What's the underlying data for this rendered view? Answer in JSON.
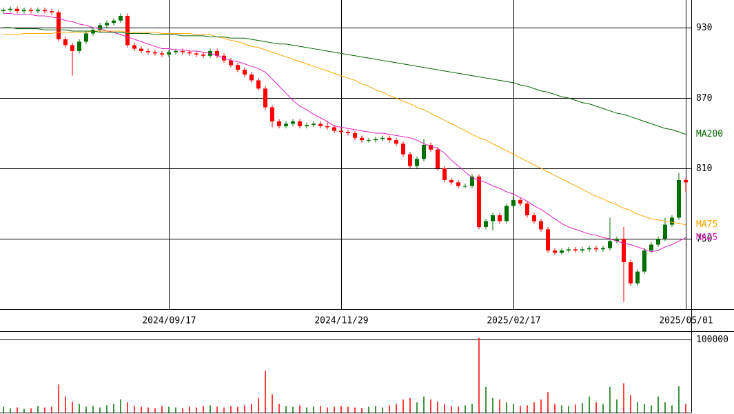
{
  "chart_data": {
    "type": "candlestick",
    "categories": [
      null,
      null,
      null,
      null,
      null,
      null,
      null,
      null,
      null,
      null,
      null,
      null,
      null,
      null,
      null,
      null,
      null,
      null,
      null,
      null,
      null,
      null,
      null,
      null,
      "2024/09/17",
      null,
      null,
      null,
      null,
      null,
      null,
      null,
      null,
      null,
      null,
      null,
      null,
      null,
      null,
      null,
      null,
      null,
      null,
      null,
      null,
      null,
      null,
      null,
      null,
      "2024/11/29",
      null,
      null,
      null,
      null,
      null,
      null,
      null,
      null,
      null,
      null,
      null,
      null,
      null,
      null,
      null,
      null,
      null,
      null,
      null,
      null,
      null,
      null,
      null,
      null,
      "2025/02/17",
      null,
      null,
      null,
      null,
      null,
      null,
      null,
      null,
      null,
      null,
      null,
      null,
      null,
      null,
      null,
      null,
      null,
      null,
      null,
      null,
      null,
      null,
      null,
      null,
      "2025/05/01"
    ],
    "ohlc": [
      [
        944,
        947,
        942,
        945
      ],
      [
        945,
        948,
        943,
        946
      ],
      [
        946,
        948,
        942,
        944
      ],
      [
        944,
        947,
        942,
        945
      ],
      [
        945,
        947,
        942,
        944
      ],
      [
        944,
        947,
        942,
        945
      ],
      [
        945,
        947,
        942,
        944
      ],
      [
        944,
        946,
        941,
        943
      ],
      [
        943,
        945,
        918,
        920
      ],
      [
        920,
        922,
        913,
        915
      ],
      [
        915,
        917,
        889,
        910
      ],
      [
        910,
        920,
        908,
        918
      ],
      [
        918,
        927,
        916,
        925
      ],
      [
        925,
        930,
        923,
        928
      ],
      [
        928,
        934,
        926,
        932
      ],
      [
        932,
        936,
        930,
        934
      ],
      [
        934,
        938,
        932,
        936
      ],
      [
        936,
        942,
        934,
        940
      ],
      [
        940,
        942,
        913,
        915
      ],
      [
        915,
        917,
        910,
        912
      ],
      [
        912,
        914,
        908,
        910
      ],
      [
        910,
        912,
        907,
        909
      ],
      [
        909,
        911,
        906,
        908
      ],
      [
        908,
        910,
        905,
        907
      ],
      [
        907,
        911,
        905,
        909
      ],
      [
        909,
        912,
        907,
        910
      ],
      [
        910,
        912,
        907,
        909
      ],
      [
        909,
        911,
        906,
        908
      ],
      [
        908,
        910,
        905,
        907
      ],
      [
        907,
        909,
        904,
        906
      ],
      [
        906,
        912,
        904,
        910
      ],
      [
        910,
        912,
        904,
        906
      ],
      [
        906,
        908,
        900,
        902
      ],
      [
        902,
        904,
        896,
        898
      ],
      [
        898,
        900,
        892,
        894
      ],
      [
        894,
        896,
        888,
        890
      ],
      [
        890,
        892,
        883,
        885
      ],
      [
        885,
        887,
        876,
        878
      ],
      [
        878,
        880,
        860,
        862
      ],
      [
        862,
        864,
        845,
        850
      ],
      [
        850,
        852,
        844,
        846
      ],
      [
        846,
        850,
        844,
        848
      ],
      [
        848,
        852,
        846,
        850
      ],
      [
        850,
        852,
        844,
        846
      ],
      [
        846,
        849,
        844,
        847
      ],
      [
        847,
        850,
        845,
        848
      ],
      [
        848,
        850,
        844,
        846
      ],
      [
        846,
        850,
        843,
        845
      ],
      [
        845,
        847,
        840,
        842
      ],
      [
        842,
        844,
        839,
        841
      ],
      [
        841,
        843,
        838,
        840
      ],
      [
        840,
        842,
        834,
        836
      ],
      [
        836,
        838,
        832,
        834
      ],
      [
        834,
        836,
        832,
        834
      ],
      [
        834,
        837,
        832,
        835
      ],
      [
        835,
        838,
        833,
        836
      ],
      [
        836,
        838,
        832,
        834
      ],
      [
        834,
        836,
        829,
        831
      ],
      [
        831,
        833,
        820,
        822
      ],
      [
        822,
        824,
        810,
        812
      ],
      [
        812,
        820,
        810,
        818
      ],
      [
        818,
        835,
        816,
        830
      ],
      [
        830,
        832,
        824,
        826
      ],
      [
        826,
        828,
        808,
        810
      ],
      [
        810,
        812,
        798,
        800
      ],
      [
        800,
        802,
        796,
        798
      ],
      [
        798,
        800,
        793,
        795
      ],
      [
        795,
        797,
        793,
        795
      ],
      [
        795,
        805,
        793,
        803
      ],
      [
        803,
        805,
        758,
        760
      ],
      [
        760,
        767,
        758,
        765
      ],
      [
        765,
        772,
        757,
        770
      ],
      [
        770,
        772,
        763,
        765
      ],
      [
        765,
        780,
        763,
        778
      ],
      [
        778,
        786,
        776,
        783
      ],
      [
        783,
        785,
        778,
        780
      ],
      [
        780,
        782,
        768,
        770
      ],
      [
        770,
        772,
        763,
        765
      ],
      [
        765,
        767,
        756,
        758
      ],
      [
        758,
        760,
        738,
        740
      ],
      [
        740,
        742,
        736,
        738
      ],
      [
        738,
        742,
        736,
        740
      ],
      [
        740,
        743,
        738,
        741
      ],
      [
        741,
        743,
        738,
        740
      ],
      [
        740,
        743,
        738,
        741
      ],
      [
        741,
        744,
        739,
        742
      ],
      [
        742,
        744,
        739,
        741
      ],
      [
        741,
        744,
        739,
        742
      ],
      [
        742,
        768,
        740,
        748
      ],
      [
        748,
        752,
        746,
        750
      ],
      [
        750,
        760,
        696,
        730
      ],
      [
        730,
        732,
        710,
        712
      ],
      [
        712,
        724,
        710,
        722
      ],
      [
        722,
        742,
        720,
        740
      ],
      [
        740,
        747,
        738,
        745
      ],
      [
        745,
        752,
        743,
        750
      ],
      [
        750,
        768,
        748,
        762
      ],
      [
        762,
        770,
        760,
        768
      ],
      [
        768,
        806,
        766,
        800
      ],
      [
        800,
        802,
        790,
        798
      ]
    ],
    "up_color": "#007000",
    "down_color": "#ff0000",
    "ylim": [
      690,
      953.5
    ],
    "yticks": [
      750,
      810,
      870,
      930
    ],
    "series": [
      {
        "name": "MA25",
        "color": "#e020c0",
        "values": [
          942,
          942,
          941,
          941,
          941,
          940,
          940,
          939,
          938,
          936,
          935,
          933,
          932,
          930,
          929,
          927,
          926,
          924,
          922,
          920,
          918,
          916,
          914,
          912,
          912,
          911,
          911,
          910,
          910,
          909,
          908,
          906,
          904,
          902,
          901,
          899,
          897,
          895,
          892,
          886,
          880,
          874,
          868,
          863,
          860,
          856,
          853,
          850,
          846,
          845,
          844,
          843,
          842,
          841,
          840,
          840,
          839,
          838,
          837,
          836,
          834,
          831,
          829,
          827,
          823,
          817,
          812,
          807,
          802,
          800,
          798,
          795,
          793,
          790,
          788,
          785,
          782,
          778,
          775,
          771,
          767,
          763,
          760,
          758,
          756,
          754,
          753,
          751,
          750,
          748,
          746,
          745,
          743,
          741,
          739,
          740,
          743,
          745,
          748,
          751
        ]
      },
      {
        "name": "MA75",
        "color": "#ffa500",
        "values": [
          924,
          924,
          924,
          925,
          925,
          925,
          925,
          925,
          926,
          926,
          926,
          926,
          926,
          927,
          927,
          927,
          927,
          927,
          926,
          926,
          926,
          926,
          926,
          925,
          925,
          925,
          925,
          925,
          924,
          924,
          924,
          922,
          921,
          919,
          918,
          916,
          914,
          913,
          911,
          909,
          907,
          905,
          903,
          901,
          899,
          897,
          895,
          893,
          891,
          889,
          887,
          885,
          882,
          880,
          877,
          875,
          872,
          870,
          867,
          865,
          862,
          860,
          857,
          854,
          851,
          848,
          845,
          842,
          839,
          836,
          834,
          831,
          828,
          825,
          822,
          819,
          816,
          813,
          810,
          807,
          804,
          801,
          798,
          795,
          792,
          789,
          786,
          784,
          781,
          779,
          776,
          774,
          771,
          769,
          767,
          766,
          765,
          764,
          763,
          762
        ]
      },
      {
        "name": "MA200",
        "color": "#006400",
        "values": [
          930,
          930,
          929,
          929,
          929,
          929,
          928,
          928,
          928,
          928,
          927,
          927,
          927,
          927,
          926,
          926,
          926,
          926,
          925,
          925,
          925,
          925,
          924,
          924,
          924,
          924,
          923,
          923,
          923,
          923,
          922,
          922,
          922,
          921,
          921,
          921,
          920,
          919,
          918,
          917,
          916,
          916,
          915,
          914,
          913,
          912,
          911,
          910,
          909,
          908,
          907,
          906,
          905,
          904,
          903,
          902,
          901,
          900,
          899,
          898,
          897,
          896,
          895,
          894,
          893,
          892,
          891,
          890,
          889,
          888,
          887,
          886,
          885,
          884,
          883,
          881,
          880,
          878,
          876,
          875,
          873,
          871,
          870,
          868,
          866,
          865,
          863,
          861,
          859,
          857,
          856,
          854,
          852,
          850,
          848,
          846,
          844,
          843,
          841,
          839
        ]
      }
    ],
    "volume": [
      8000,
      6000,
      7000,
      5000,
      6000,
      9000,
      7000,
      8000,
      38000,
      22000,
      15000,
      12000,
      8000,
      9000,
      7000,
      10000,
      12000,
      18000,
      14000,
      9000,
      8000,
      7000,
      6000,
      9000,
      8000,
      7000,
      6000,
      8000,
      7000,
      9000,
      10000,
      8000,
      7000,
      9000,
      8000,
      10000,
      12000,
      20000,
      57000,
      25000,
      12000,
      9000,
      8000,
      10000,
      7000,
      8000,
      9000,
      7000,
      8000,
      9000,
      8000,
      7000,
      6000,
      8000,
      9000,
      7000,
      10000,
      12000,
      18000,
      20000,
      14000,
      22000,
      18000,
      15000,
      12000,
      9000,
      8000,
      10000,
      12000,
      102000,
      35000,
      20000,
      18000,
      14000,
      12000,
      9000,
      10000,
      14000,
      18000,
      28000,
      12000,
      10000,
      9000,
      11000,
      13000,
      22000,
      14000,
      12000,
      35000,
      18000,
      40000,
      24000,
      14000,
      12000,
      10000,
      22000,
      14000,
      10000,
      36000,
      12000
    ],
    "volume_ylim": [
      0,
      111000
    ],
    "volume_yticks": [
      100000
    ],
    "grid": true
  }
}
